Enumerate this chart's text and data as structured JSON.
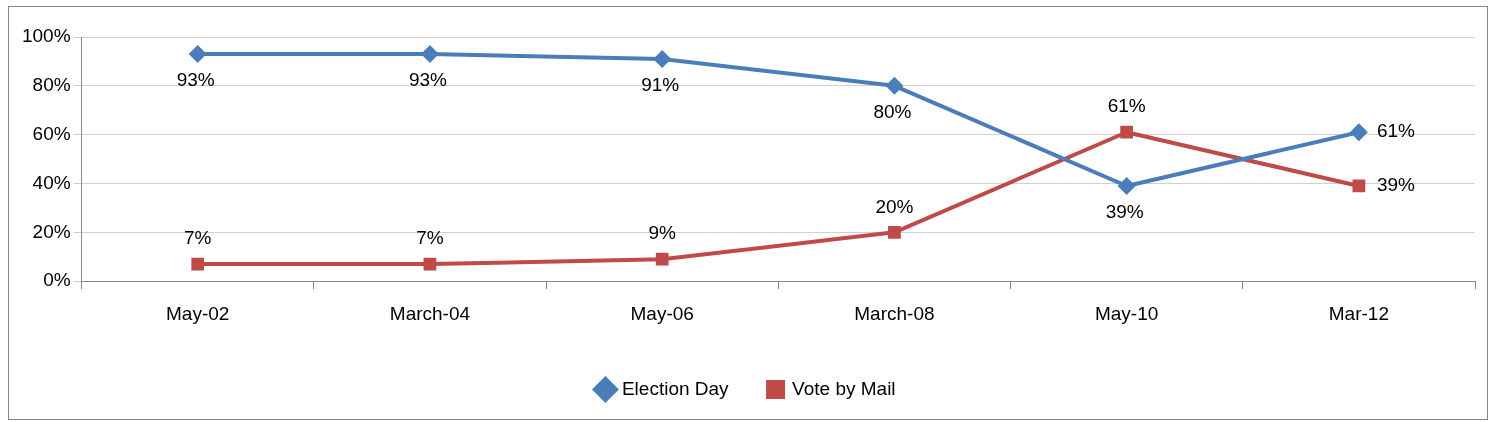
{
  "chart_data": {
    "type": "line",
    "categories": [
      "May-02",
      "March-04",
      "May-06",
      "March-08",
      "May-10",
      "Mar-12"
    ],
    "series": [
      {
        "name": "Election Day",
        "color": "#4a7ebb",
        "marker": "diamond",
        "values": [
          93,
          93,
          91,
          80,
          39,
          61
        ],
        "value_labels": [
          "93%",
          "93%",
          "91%",
          "80%",
          "39%",
          "61%"
        ]
      },
      {
        "name": "Vote by Mail",
        "color": "#be4b48",
        "marker": "square",
        "values": [
          7,
          7,
          9,
          20,
          61,
          39
        ],
        "value_labels": [
          "7%",
          "7%",
          "9%",
          "20%",
          "61%",
          "39%"
        ]
      }
    ],
    "ylim": [
      0,
      100
    ],
    "yticks": [
      {
        "value": 0,
        "label": "0%"
      },
      {
        "value": 20,
        "label": "20%"
      },
      {
        "value": 40,
        "label": "40%"
      },
      {
        "value": 60,
        "label": "60%"
      },
      {
        "value": 80,
        "label": "80%"
      },
      {
        "value": 100,
        "label": "100%"
      }
    ],
    "grid": "y",
    "legend": "bottom",
    "line_style": "solid"
  }
}
